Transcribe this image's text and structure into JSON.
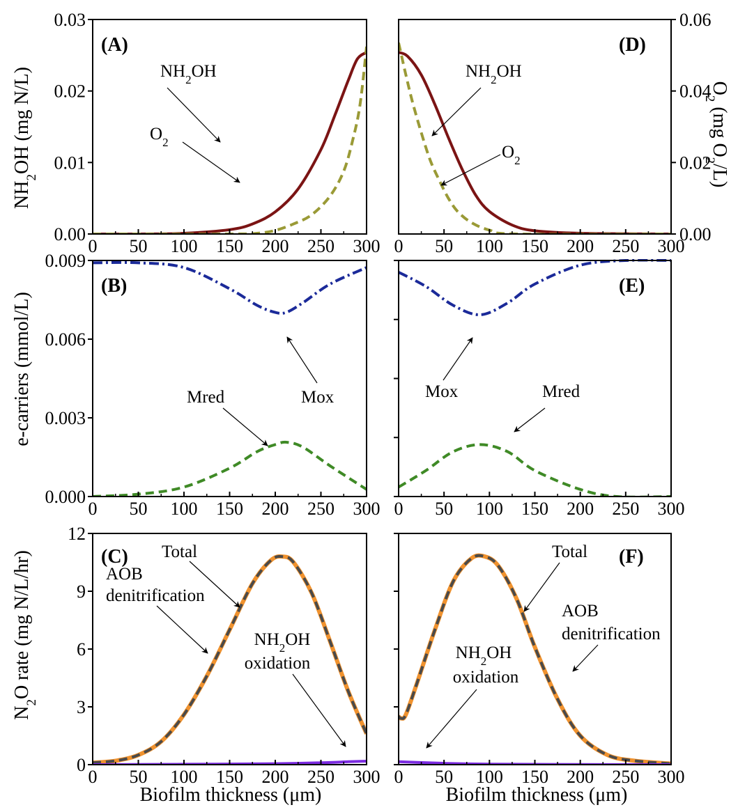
{
  "chart_data": [
    {
      "panel": "(A)",
      "type": "line",
      "xlim": [
        0,
        300
      ],
      "ylim": [
        0,
        0.03
      ],
      "x_ticks": [
        "0",
        "50",
        "100",
        "150",
        "200",
        "250",
        "300"
      ],
      "y_ticks": [
        "0.00",
        "0.01",
        "0.02",
        "0.03"
      ],
      "ylabel": "NH2OH (mg N/L)",
      "series": [
        {
          "name": "NH2OH",
          "color": "#7b1414",
          "style": "solid",
          "x": [
            0,
            50,
            100,
            150,
            175,
            200,
            225,
            250,
            265,
            280,
            290,
            300
          ],
          "y": [
            0.0,
            0.0,
            0.0001,
            0.0006,
            0.0014,
            0.0031,
            0.0063,
            0.0118,
            0.0165,
            0.0215,
            0.0245,
            0.0254
          ]
        },
        {
          "name": "O2",
          "color": "#9a9a36",
          "style": "dash",
          "x": [
            0,
            150,
            180,
            200,
            220,
            240,
            260,
            275,
            285,
            293,
            300
          ],
          "y": [
            0.0,
            0.0,
            0.0001,
            0.0005,
            0.0014,
            0.0027,
            0.0053,
            0.0088,
            0.0132,
            0.0182,
            0.0262
          ]
        }
      ]
    },
    {
      "panel": "(D)",
      "type": "line",
      "xlim": [
        0,
        300
      ],
      "ylim": [
        0,
        0.06
      ],
      "x_ticks": [
        "0",
        "50",
        "100",
        "150",
        "200",
        "250",
        "300"
      ],
      "y_ticks": [
        "0.00",
        "0.02",
        "0.04",
        "0.06"
      ],
      "ylabel": "O2 (mg O2/L)",
      "series": [
        {
          "name": "NH2OH",
          "color": "#7b1414",
          "style": "solid",
          "x": [
            0,
            10,
            25,
            40,
            55,
            70,
            85,
            100,
            125,
            150,
            200,
            300
          ],
          "y": [
            0.0508,
            0.0497,
            0.0445,
            0.0362,
            0.0268,
            0.0181,
            0.0108,
            0.0063,
            0.0025,
            0.0009,
            0.0002,
            0.0
          ]
        },
        {
          "name": "O2",
          "color": "#9a9a36",
          "style": "dash",
          "x": [
            0,
            7,
            15,
            25,
            35,
            45,
            55,
            65,
            80,
            100,
            130,
            300
          ],
          "y": [
            0.0535,
            0.0456,
            0.0372,
            0.0283,
            0.0205,
            0.0149,
            0.0099,
            0.0063,
            0.0032,
            0.0011,
            0.0,
            0.0
          ]
        }
      ]
    },
    {
      "panel": "(B)",
      "type": "line",
      "xlim": [
        0,
        300
      ],
      "ylim": [
        0,
        0.01
      ],
      "x_ticks": [
        "0",
        "50",
        "100",
        "150",
        "200",
        "250",
        "300"
      ],
      "y_ticks": [
        "0.000",
        "0.003",
        "0.006",
        "0.009"
      ],
      "ylabel": "e-carriers (mmol/L)",
      "series": [
        {
          "name": "Mox",
          "color": "#1b2a99",
          "style": "dashdot",
          "x": [
            0,
            50,
            100,
            150,
            180,
            200,
            212,
            230,
            260,
            300
          ],
          "y": [
            0.0099,
            0.0099,
            0.0097,
            0.0088,
            0.0081,
            0.0078,
            0.0078,
            0.0082,
            0.009,
            0.0097
          ]
        },
        {
          "name": "Mred",
          "color": "#3f8a26",
          "style": "dash",
          "x": [
            0,
            50,
            100,
            150,
            180,
            200,
            212,
            230,
            260,
            300
          ],
          "y": [
            0.0,
            0.0001,
            0.0004,
            0.0012,
            0.0019,
            0.0022,
            0.0023,
            0.0021,
            0.0013,
            0.0003
          ]
        }
      ]
    },
    {
      "panel": "(E)",
      "type": "line",
      "xlim": [
        0,
        300
      ],
      "ylim": [
        0,
        0.01
      ],
      "x_ticks": [
        "0",
        "50",
        "100",
        "150",
        "200",
        "250",
        "300"
      ],
      "y_ticks": [],
      "series": [
        {
          "name": "Mox",
          "color": "#1b2a99",
          "style": "dashdot",
          "x": [
            0,
            30,
            60,
            90,
            120,
            150,
            200,
            250,
            300
          ],
          "y": [
            0.0095,
            0.0089,
            0.0081,
            0.0077,
            0.0082,
            0.009,
            0.0098,
            0.01,
            0.01
          ]
        },
        {
          "name": "Mred",
          "color": "#3f8a26",
          "style": "dash",
          "x": [
            0,
            30,
            60,
            90,
            120,
            150,
            200,
            240,
            300
          ],
          "y": [
            0.0004,
            0.0011,
            0.0019,
            0.0022,
            0.0019,
            0.0011,
            0.0003,
            0.0,
            0.0
          ]
        }
      ]
    },
    {
      "panel": "(C)",
      "type": "line",
      "xlim": [
        0,
        300
      ],
      "ylim": [
        0,
        12
      ],
      "x_ticks": [
        "0",
        "50",
        "100",
        "150",
        "200",
        "250",
        "300"
      ],
      "y_ticks": [
        "0",
        "3",
        "6",
        "9",
        "12"
      ],
      "xlabel": "Biofilm thickness (μm)",
      "ylabel": "N2O rate (mg N/L/hr)",
      "series": [
        {
          "name": "AOB denitrification",
          "color": "#f0922e",
          "style": "solid",
          "x": [
            0,
            25,
            50,
            75,
            100,
            125,
            150,
            175,
            195,
            208,
            220,
            240,
            260,
            280,
            300
          ],
          "y": [
            0.1,
            0.2,
            0.5,
            1.2,
            2.6,
            4.6,
            7.0,
            9.4,
            10.6,
            10.8,
            10.5,
            8.9,
            6.4,
            3.8,
            1.6
          ]
        },
        {
          "name": "Total",
          "color": "#4a4a4a",
          "style": "dash",
          "x": [
            0,
            25,
            50,
            75,
            100,
            125,
            150,
            175,
            195,
            208,
            220,
            240,
            260,
            280,
            300
          ],
          "y": [
            0.1,
            0.2,
            0.5,
            1.2,
            2.6,
            4.6,
            7.0,
            9.4,
            10.6,
            10.8,
            10.5,
            8.9,
            6.4,
            3.8,
            1.6
          ]
        },
        {
          "name": "NH2OH oxidation",
          "color": "#7b2be0",
          "style": "solid",
          "x": [
            0,
            100,
            200,
            250,
            280,
            300
          ],
          "y": [
            0.0,
            0.02,
            0.05,
            0.1,
            0.15,
            0.18
          ]
        }
      ]
    },
    {
      "panel": "(F)",
      "type": "line",
      "xlim": [
        0,
        300
      ],
      "ylim": [
        0,
        12
      ],
      "x_ticks": [
        "0",
        "50",
        "100",
        "150",
        "200",
        "250",
        "300"
      ],
      "y_ticks": [],
      "xlabel": "Biofilm thickness (μm)",
      "series": [
        {
          "name": "AOB denitrification",
          "color": "#f0922e",
          "style": "solid",
          "x": [
            0,
            3,
            8,
            20,
            40,
            60,
            80,
            95,
            110,
            130,
            150,
            175,
            200,
            230,
            260,
            300
          ],
          "y": [
            2.5,
            2.4,
            2.6,
            4.2,
            7.0,
            9.5,
            10.7,
            10.8,
            10.3,
            8.6,
            6.1,
            3.4,
            1.5,
            0.5,
            0.2,
            0.05
          ]
        },
        {
          "name": "Total",
          "color": "#4a4a4a",
          "style": "dash",
          "x": [
            0,
            3,
            8,
            20,
            40,
            60,
            80,
            95,
            110,
            130,
            150,
            175,
            200,
            230,
            260,
            300
          ],
          "y": [
            2.5,
            2.4,
            2.6,
            4.2,
            7.0,
            9.5,
            10.7,
            10.8,
            10.3,
            8.6,
            6.1,
            3.4,
            1.5,
            0.5,
            0.2,
            0.05
          ]
        },
        {
          "name": "NH2OH oxidation",
          "color": "#7b2be0",
          "style": "solid",
          "x": [
            0,
            20,
            50,
            100,
            200,
            300
          ],
          "y": [
            0.15,
            0.12,
            0.07,
            0.03,
            0.01,
            0.0
          ]
        }
      ]
    }
  ],
  "labels": {
    "panel_a": "(A)",
    "panel_b": "(B)",
    "panel_c": "(C)",
    "panel_d": "(D)",
    "panel_e": "(E)",
    "panel_f": "(F)",
    "nh2oh_1": "NH",
    "nh2oh_sub": "2",
    "nh2oh_2": "OH",
    "o2_1": "O",
    "o2_sub": "2",
    "mox": "Mox",
    "mred": "Mred",
    "total": "Total",
    "aob": "AOB",
    "denitrification": "denitrification",
    "oxidation": "oxidation",
    "ylabel_a_1": "NH",
    "ylabel_a_sub": "2",
    "ylabel_a_2": "OH (mg N/L)",
    "ylabel_d_1": "O",
    "ylabel_d_sub": "2",
    "ylabel_d_2": " (mg O",
    "ylabel_d_3": "/L)",
    "ylabel_b": "e-carriers (mmol/L)",
    "ylabel_c_1": "N",
    "ylabel_c_sub": "2",
    "ylabel_c_2": "O rate (mg N/L/hr)",
    "xlabel": "Biofilm thickness (μm)"
  }
}
